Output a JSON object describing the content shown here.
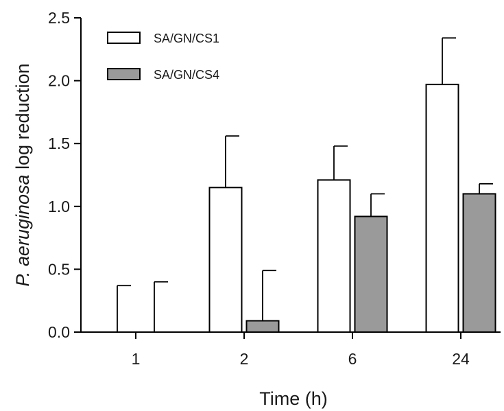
{
  "chart_data": {
    "type": "bar",
    "categories": [
      "1",
      "2",
      "6",
      "24"
    ],
    "series": [
      {
        "name": "SA/GN/CS1",
        "values": [
          0.0,
          1.15,
          1.21,
          1.97
        ],
        "errors": [
          0.37,
          0.41,
          0.27,
          0.37
        ],
        "color": "#ffffff"
      },
      {
        "name": "SA/GN/CS4",
        "values": [
          0.0,
          0.09,
          0.92,
          1.1
        ],
        "errors": [
          0.4,
          0.4,
          0.18,
          0.08
        ],
        "color": "#9a9a9a"
      }
    ],
    "xlabel": "Time (h)",
    "ylabel_italic": "P. aeruginosa",
    "ylabel_rest": " log reduction",
    "ylim": [
      0,
      2.5
    ],
    "yticks": [
      0.0,
      0.5,
      1.0,
      1.5,
      2.0,
      2.5
    ],
    "ytick_labels": [
      "0.0",
      "0.5",
      "1.0",
      "1.5",
      "2.0",
      "2.5"
    ],
    "legend_position": "top-left",
    "grid": false
  }
}
